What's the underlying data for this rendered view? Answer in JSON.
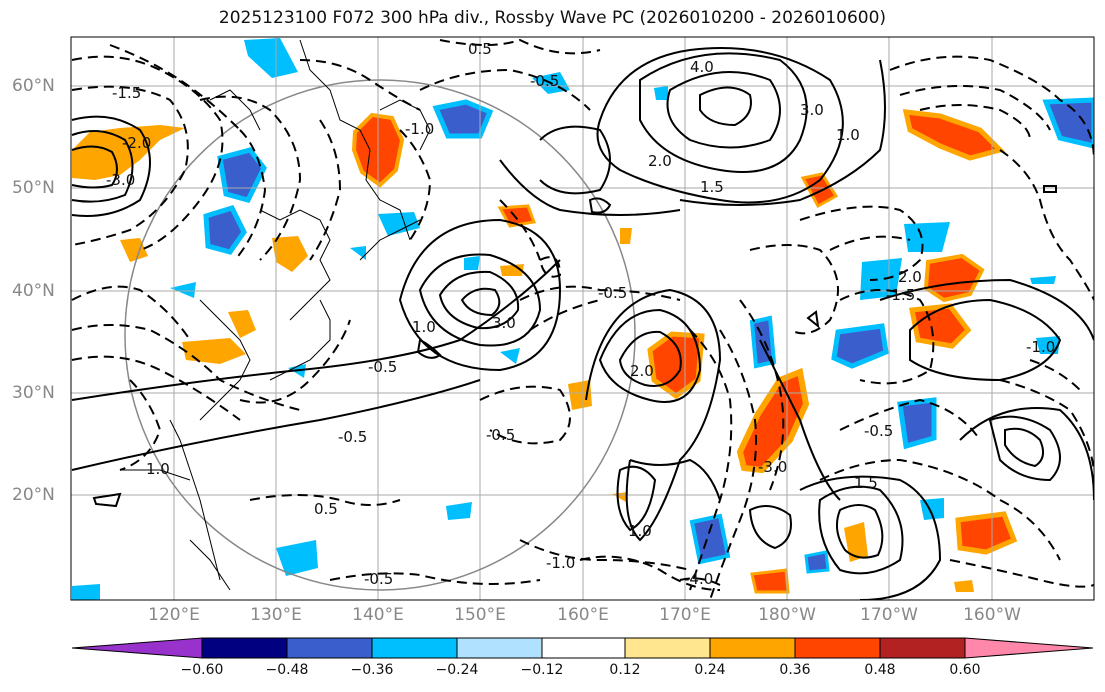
{
  "title": "2025123100 F072 300 hPa div., Rossby Wave PC (2026010200 - 2026010600)",
  "lat_labels": [
    "60°N",
    "50°N",
    "40°N",
    "30°N",
    "20°N"
  ],
  "lon_labels": [
    "120°E",
    "130°E",
    "140°E",
    "150°E",
    "160°E",
    "170°E",
    "180°W",
    "170°W",
    "160°W"
  ],
  "colorbar": {
    "colors": [
      "#9932cc",
      "#000080",
      "#3a5fcd",
      "#00bfff",
      "#b0e2ff",
      "#ffffff",
      "#ffe68f",
      "#ffa500",
      "#ff4500",
      "#b22222",
      "#ff88aa"
    ],
    "labels": [
      "−0.60",
      "−0.48",
      "−0.36",
      "−0.24",
      "−0.12",
      "0.12",
      "0.24",
      "0.36",
      "0.48",
      "0.60"
    ]
  },
  "contour_labels": [
    {
      "text": "4.0"
    },
    {
      "text": "3.0"
    },
    {
      "text": "1.0"
    },
    {
      "text": "2.0"
    },
    {
      "text": "1.5"
    },
    {
      "text": "0.5"
    },
    {
      "text": "-0.5"
    },
    {
      "text": "-1.0"
    },
    {
      "text": "-1.5"
    },
    {
      "text": "-2.0"
    },
    {
      "text": "-3.0"
    },
    {
      "text": "-0.5"
    },
    {
      "text": "1.0"
    },
    {
      "text": "2.0"
    },
    {
      "text": "3.0"
    },
    {
      "text": "-0.5"
    },
    {
      "text": "-0.5"
    },
    {
      "text": "-1.0"
    },
    {
      "text": "-4.0"
    },
    {
      "text": "1.5"
    },
    {
      "text": "-0.5"
    },
    {
      "text": "1.0"
    },
    {
      "text": "-0.5"
    },
    {
      "text": "-1.5"
    },
    {
      "text": "2.0"
    },
    {
      "text": "-3.0"
    },
    {
      "text": "0.5"
    },
    {
      "text": "1.0"
    },
    {
      "text": "-0.5"
    },
    {
      "text": "-1.0"
    }
  ]
}
